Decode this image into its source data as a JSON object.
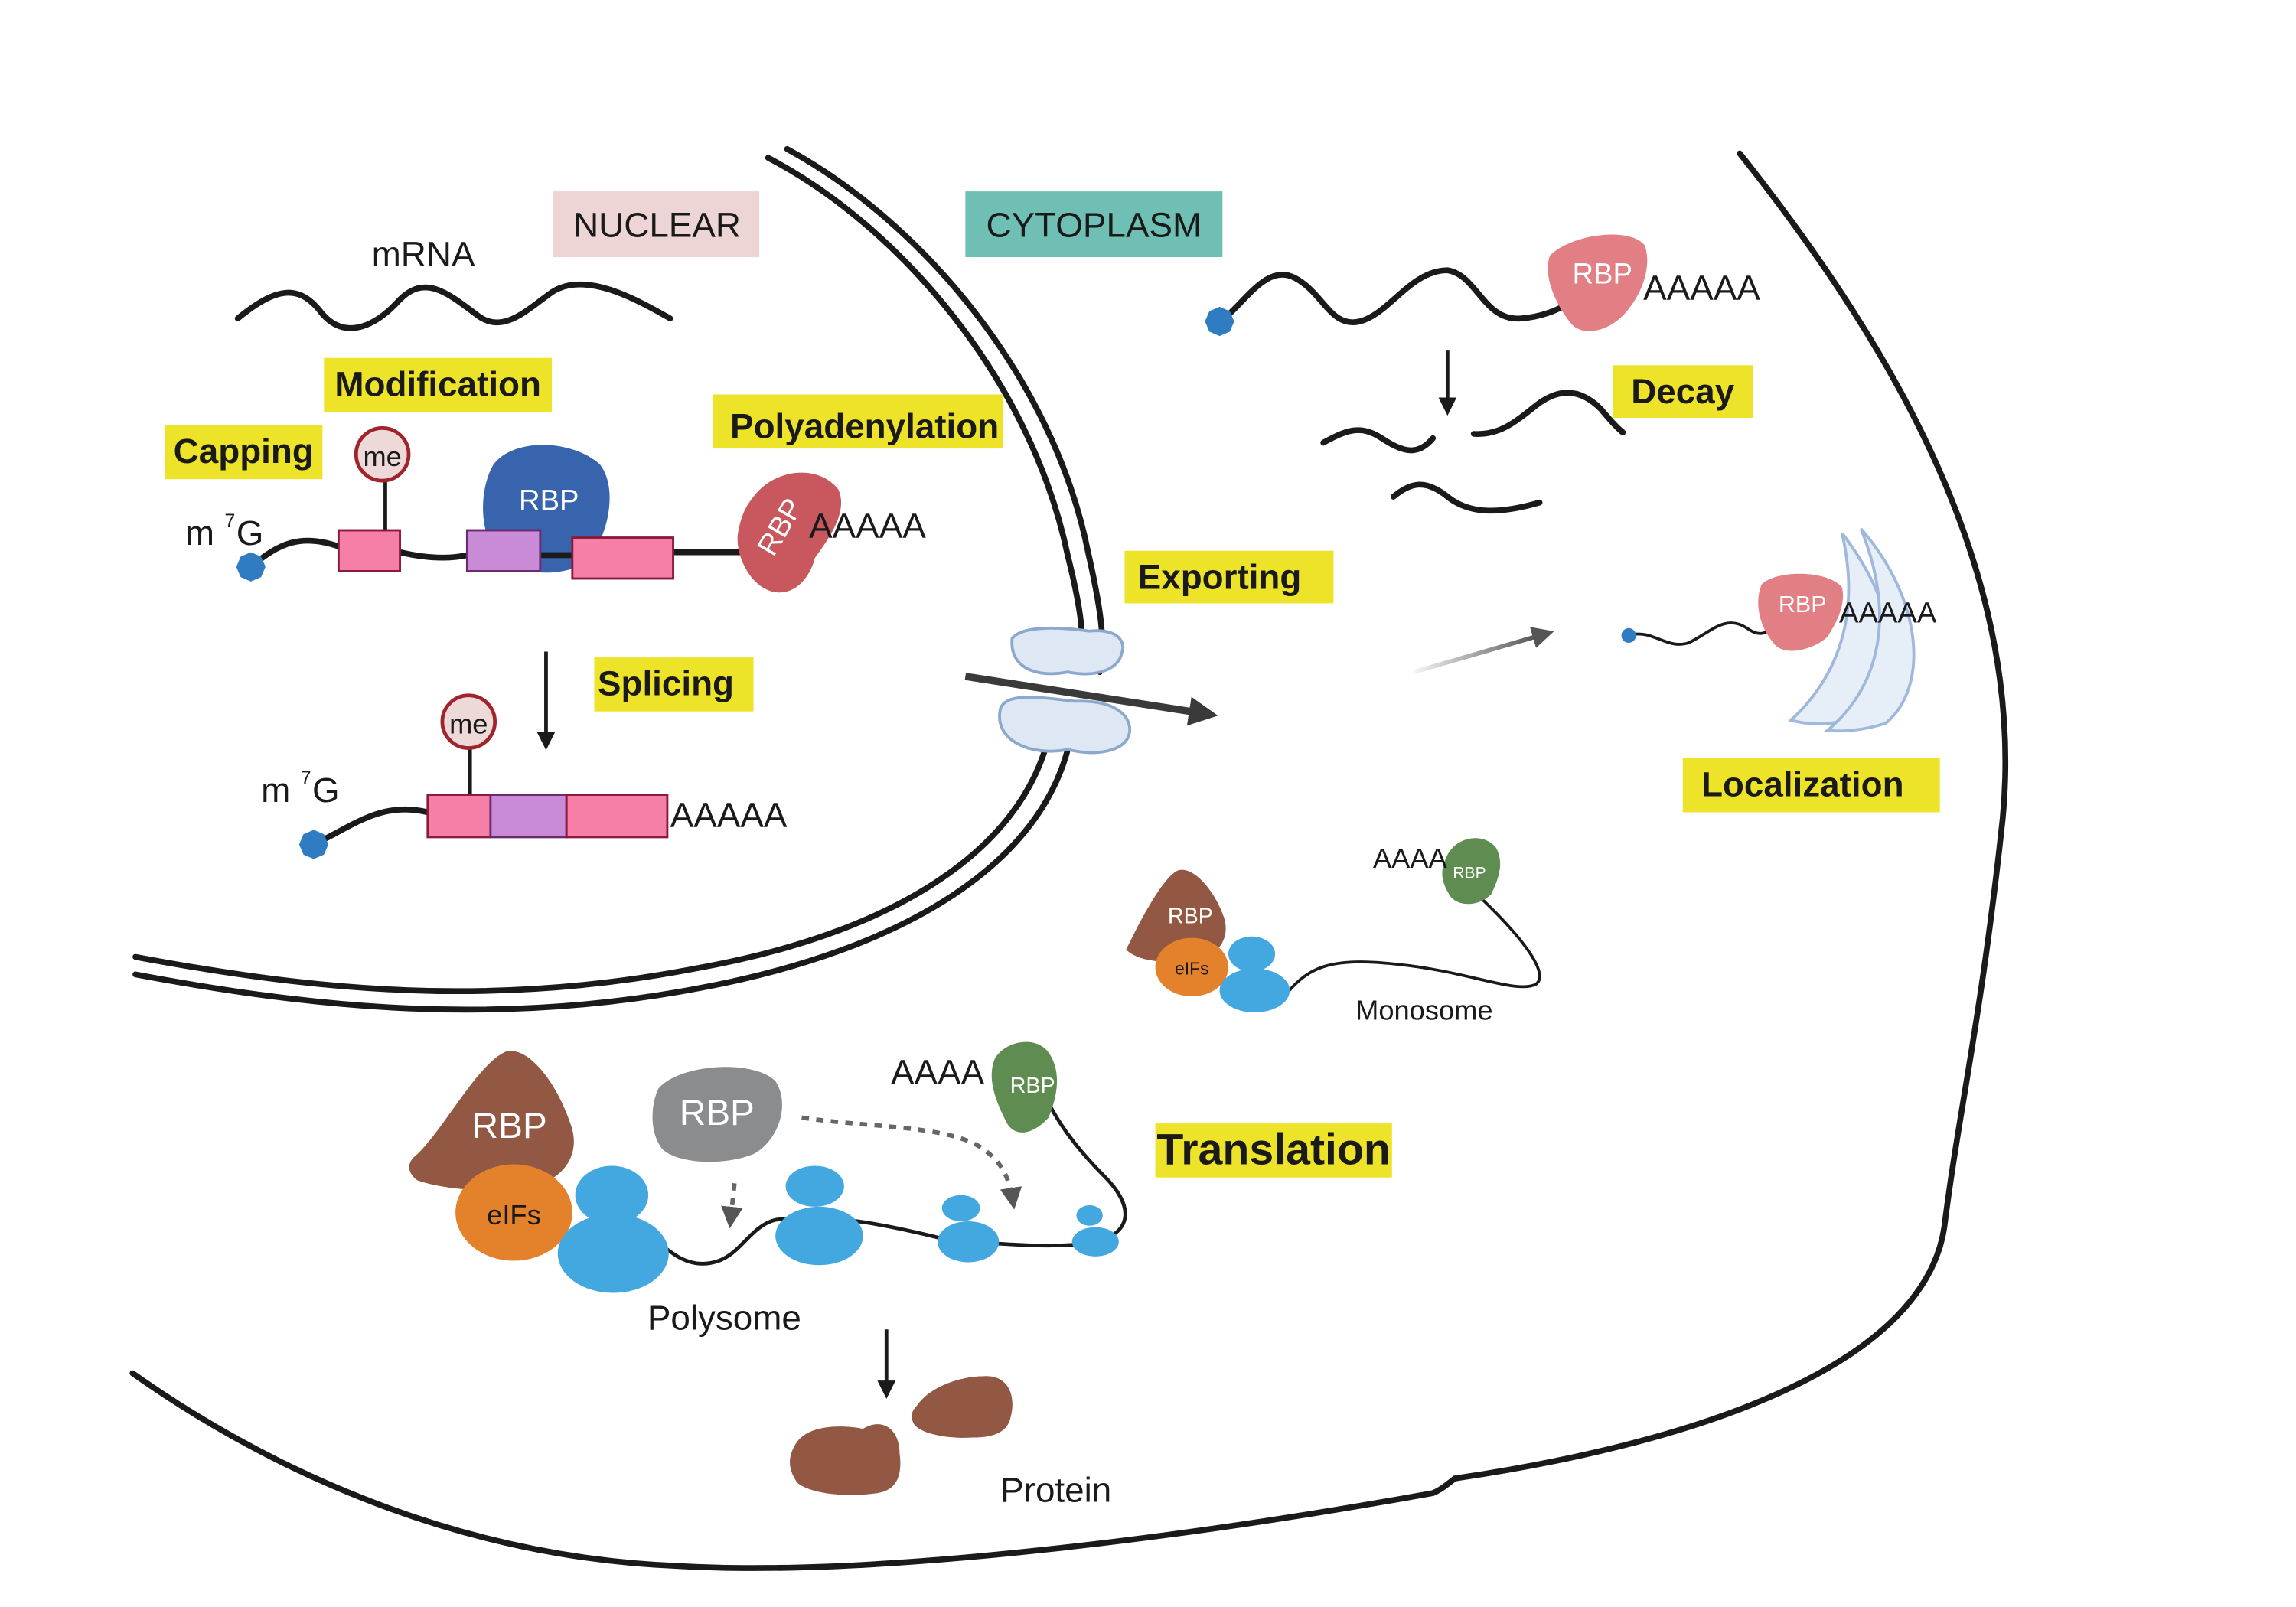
{
  "compartments": {
    "nuclear": "NUCLEAR",
    "cytoplasm": "CYTOPLASM"
  },
  "process_labels": {
    "capping": "Capping",
    "modification": "Modification",
    "polyadenylation": "Polyadenylation",
    "splicing": "Splicing",
    "exporting": "Exporting",
    "decay": "Decay",
    "localization": "Localization",
    "translation": "Translation"
  },
  "molecule_labels": {
    "mrna": "mRNA",
    "cap": "m",
    "cap_sup": "7",
    "cap_g": "G",
    "methyl": "me",
    "rbp": "RBP",
    "polya": "AAAAA",
    "polya_short": "AAAA",
    "eifs": "eIFs",
    "monosome": "Monosome",
    "polysome": "Polysome",
    "protein": "Protein"
  },
  "colors": {
    "highlight": "#ede42a",
    "nuclear_box": "#eed5d5",
    "cytoplasm_box": "#6fbfb5",
    "exon": "#f57fa7",
    "intron": "#c98bd6",
    "cap": "#2f7cc2",
    "rbp_blue": "#3863ad",
    "rbp_red": "#c9585e",
    "rbp_pink": "#e17f84",
    "rbp_brown": "#925843",
    "rbp_green": "#5f8c50",
    "rbp_gray": "#8a8c8e",
    "eifs": "#e4822c",
    "ribosome": "#43a8e0",
    "methyl_fill": "#edd9d7",
    "methyl_stroke": "#a0242c",
    "pore": "#dde8f4",
    "er": "#c5d8ee"
  }
}
